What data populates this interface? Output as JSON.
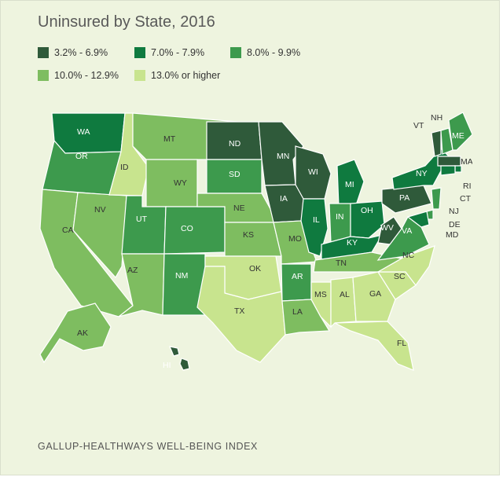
{
  "title": "Uninsured by State, 2016",
  "source": "GALLUP-HEALTHWAYS WELL-BEING INDEX",
  "colors": {
    "c1": "#2f5a3a",
    "c2": "#0f7a3f",
    "c3": "#3d9a4d",
    "c4": "#7ebd60",
    "c5": "#c8e48e",
    "border": "#ffffff"
  },
  "legend": [
    {
      "label": "3.2% - 6.9%",
      "color_key": "c1"
    },
    {
      "label": "7.0% - 7.9%",
      "color_key": "c2"
    },
    {
      "label": "8.0% - 9.9%",
      "color_key": "c3"
    },
    {
      "label": "10.0% - 12.9%",
      "color_key": "c4"
    },
    {
      "label": "13.0% or higher",
      "color_key": "c5"
    }
  ],
  "states": [
    {
      "abbr": "WA",
      "bin": "c2"
    },
    {
      "abbr": "OR",
      "bin": "c3"
    },
    {
      "abbr": "CA",
      "bin": "c4"
    },
    {
      "abbr": "NV",
      "bin": "c4"
    },
    {
      "abbr": "ID",
      "bin": "c5"
    },
    {
      "abbr": "MT",
      "bin": "c4"
    },
    {
      "abbr": "WY",
      "bin": "c4"
    },
    {
      "abbr": "UT",
      "bin": "c3"
    },
    {
      "abbr": "AZ",
      "bin": "c4"
    },
    {
      "abbr": "CO",
      "bin": "c3"
    },
    {
      "abbr": "NM",
      "bin": "c3"
    },
    {
      "abbr": "ND",
      "bin": "c1"
    },
    {
      "abbr": "SD",
      "bin": "c3"
    },
    {
      "abbr": "NE",
      "bin": "c4"
    },
    {
      "abbr": "KS",
      "bin": "c4"
    },
    {
      "abbr": "OK",
      "bin": "c5"
    },
    {
      "abbr": "TX",
      "bin": "c5"
    },
    {
      "abbr": "MN",
      "bin": "c1"
    },
    {
      "abbr": "IA",
      "bin": "c1"
    },
    {
      "abbr": "MO",
      "bin": "c4"
    },
    {
      "abbr": "AR",
      "bin": "c3"
    },
    {
      "abbr": "LA",
      "bin": "c4"
    },
    {
      "abbr": "WI",
      "bin": "c1"
    },
    {
      "abbr": "IL",
      "bin": "c2"
    },
    {
      "abbr": "MI",
      "bin": "c2"
    },
    {
      "abbr": "IN",
      "bin": "c3"
    },
    {
      "abbr": "OH",
      "bin": "c2"
    },
    {
      "abbr": "KY",
      "bin": "c2"
    },
    {
      "abbr": "TN",
      "bin": "c4"
    },
    {
      "abbr": "MS",
      "bin": "c5"
    },
    {
      "abbr": "AL",
      "bin": "c5"
    },
    {
      "abbr": "GA",
      "bin": "c5"
    },
    {
      "abbr": "FL",
      "bin": "c5"
    },
    {
      "abbr": "SC",
      "bin": "c5"
    },
    {
      "abbr": "NC",
      "bin": "c5"
    },
    {
      "abbr": "VA",
      "bin": "c3"
    },
    {
      "abbr": "WV",
      "bin": "c1"
    },
    {
      "abbr": "PA",
      "bin": "c1"
    },
    {
      "abbr": "NY",
      "bin": "c2"
    },
    {
      "abbr": "VT",
      "bin": "c1"
    },
    {
      "abbr": "NH",
      "bin": "c3"
    },
    {
      "abbr": "ME",
      "bin": "c3"
    },
    {
      "abbr": "MA",
      "bin": "c1"
    },
    {
      "abbr": "RI",
      "bin": "c2"
    },
    {
      "abbr": "CT",
      "bin": "c2"
    },
    {
      "abbr": "NJ",
      "bin": "c3"
    },
    {
      "abbr": "DE",
      "bin": "c3"
    },
    {
      "abbr": "MD",
      "bin": "c2"
    },
    {
      "abbr": "AK",
      "bin": "c4"
    },
    {
      "abbr": "HI",
      "bin": "c1"
    }
  ]
}
